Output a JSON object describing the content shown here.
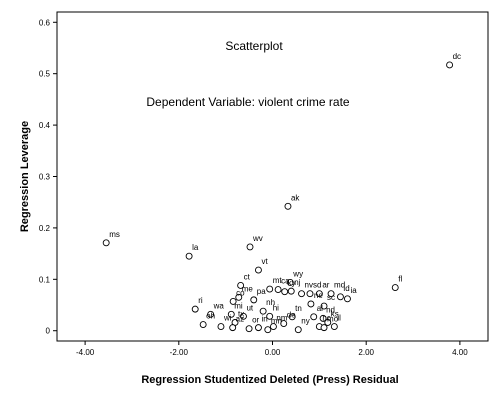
{
  "chart_data": {
    "type": "scatter",
    "title": "Scatterplot",
    "subtitle": "Dependent Variable: violent crime rate",
    "xlabel": "Regression Studentized Deleted (Press) Residual",
    "ylabel": "Regression Leverage",
    "xlim": [
      -4.6,
      4.6
    ],
    "ylim": [
      -0.02,
      0.62
    ],
    "xticks": [
      -4,
      -2,
      0,
      2,
      4
    ],
    "xtick_labels": [
      "-4.00",
      "-2.00",
      "0.00",
      "2.00",
      "4.00"
    ],
    "yticks": [
      0,
      0.1,
      0.2,
      0.3,
      0.4,
      0.5,
      0.6
    ],
    "ytick_labels": [
      "0",
      "0.1",
      "0.2",
      "0.3",
      "0.4",
      "0.5",
      "0.6"
    ],
    "grid": false,
    "marker": "open-circle",
    "points": [
      {
        "label": "dc",
        "x": 3.78,
        "y": 0.517
      },
      {
        "label": "ak",
        "x": 0.33,
        "y": 0.242
      },
      {
        "label": "ms",
        "x": -3.55,
        "y": 0.171
      },
      {
        "label": "la",
        "x": -1.78,
        "y": 0.145
      },
      {
        "label": "wv",
        "x": -0.48,
        "y": 0.163
      },
      {
        "label": "vt",
        "x": -0.3,
        "y": 0.118
      },
      {
        "label": "fl",
        "x": 2.62,
        "y": 0.084
      },
      {
        "label": "ct",
        "x": -0.68,
        "y": 0.088
      },
      {
        "label": "wy",
        "x": 0.38,
        "y": 0.094
      },
      {
        "label": "mt",
        "x": -0.06,
        "y": 0.081
      },
      {
        "label": "ca",
        "x": 0.12,
        "y": 0.08
      },
      {
        "label": "ky",
        "x": 0.26,
        "y": 0.076
      },
      {
        "label": "nj",
        "x": 0.4,
        "y": 0.077
      },
      {
        "label": "nv",
        "x": 0.62,
        "y": 0.072
      },
      {
        "label": "sd",
        "x": 0.8,
        "y": 0.072
      },
      {
        "label": "ar",
        "x": 1.0,
        "y": 0.072
      },
      {
        "label": "md",
        "x": 1.25,
        "y": 0.072
      },
      {
        "label": "id",
        "x": 1.45,
        "y": 0.066
      },
      {
        "label": "me",
        "x": -0.72,
        "y": 0.065
      },
      {
        "label": "ia",
        "x": 1.6,
        "y": 0.062
      },
      {
        "label": "co",
        "x": -0.84,
        "y": 0.057
      },
      {
        "label": "pa",
        "x": -0.4,
        "y": 0.06
      },
      {
        "label": "ne",
        "x": 0.82,
        "y": 0.052
      },
      {
        "label": "sc",
        "x": 1.1,
        "y": 0.048
      },
      {
        "label": "ri",
        "x": -1.65,
        "y": 0.042
      },
      {
        "label": "nh",
        "x": -0.2,
        "y": 0.038
      },
      {
        "label": "wa",
        "x": -1.32,
        "y": 0.032
      },
      {
        "label": "mi",
        "x": -0.88,
        "y": 0.032
      },
      {
        "label": "ut",
        "x": -0.62,
        "y": 0.028
      },
      {
        "label": "hi",
        "x": -0.06,
        "y": 0.028
      },
      {
        "label": "tn",
        "x": 0.42,
        "y": 0.027
      },
      {
        "label": "al",
        "x": 0.88,
        "y": 0.027
      },
      {
        "label": "nd",
        "x": 1.08,
        "y": 0.024
      },
      {
        "label": "ks",
        "x": 1.18,
        "y": 0.016
      },
      {
        "label": "tx",
        "x": -0.8,
        "y": 0.016
      },
      {
        "label": "de",
        "x": 0.24,
        "y": 0.014
      },
      {
        "label": "nm",
        "x": 0.02,
        "y": 0.008
      },
      {
        "label": "wi",
        "x": -1.1,
        "y": 0.008
      },
      {
        "label": "az",
        "x": -0.85,
        "y": 0.006
      },
      {
        "label": "oh",
        "x": -1.48,
        "y": 0.012
      },
      {
        "label": "or",
        "x": -0.5,
        "y": 0.004
      },
      {
        "label": "in",
        "x": -0.3,
        "y": 0.006
      },
      {
        "label": "mn",
        "x": -0.1,
        "y": 0.002
      },
      {
        "label": "ny",
        "x": 0.55,
        "y": 0.002
      },
      {
        "label": "nc",
        "x": 1.0,
        "y": 0.008
      },
      {
        "label": "mo",
        "x": 1.1,
        "y": 0.006
      },
      {
        "label": "il",
        "x": 1.32,
        "y": 0.008
      }
    ]
  }
}
